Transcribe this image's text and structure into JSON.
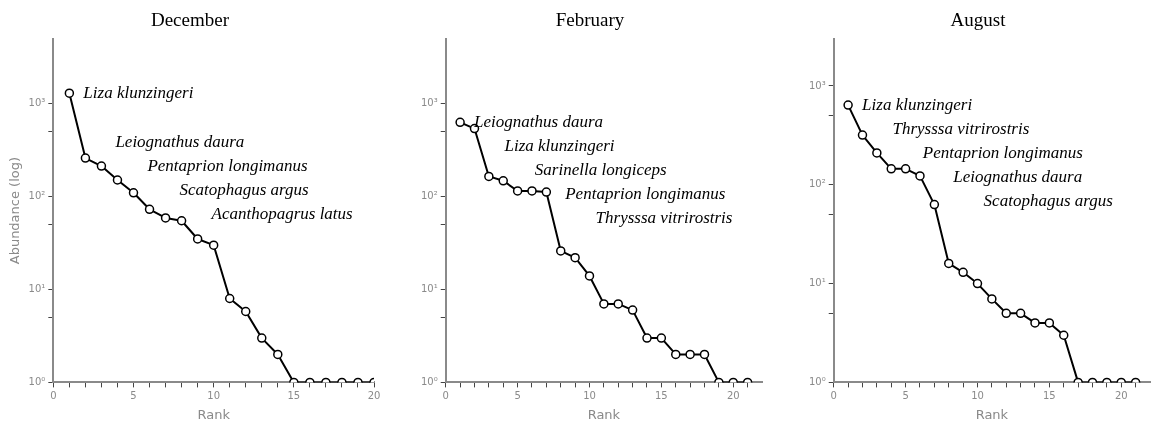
{
  "chart_data": [
    {
      "type": "line",
      "title": "December",
      "xlabel": "Rank",
      "ylabel": "Abundance (log)",
      "log": "y",
      "marker": "circle",
      "line_style": "solid",
      "x": [
        1,
        2,
        3,
        4,
        5,
        6,
        7,
        8,
        9,
        10,
        11,
        12,
        13,
        14,
        15,
        16,
        17,
        18,
        19,
        20
      ],
      "series": [
        {
          "color": "#000000",
          "values": [
            1300,
            260,
            213,
            151,
            110,
            73,
            59,
            55,
            35,
            30,
            8,
            5.8,
            3,
            2,
            1,
            1,
            1,
            1,
            1,
            1
          ]
        }
      ],
      "xlim": [
        0,
        20
      ],
      "xticks": [
        0,
        {
          "value": 1,
          "label": null
        },
        {
          "value": 2,
          "label": null
        },
        {
          "value": 3,
          "label": null
        },
        {
          "value": 4,
          "label": null
        },
        5,
        {
          "value": 6,
          "label": null
        },
        {
          "value": 7,
          "label": null
        },
        {
          "value": 8,
          "label": null
        },
        {
          "value": 9,
          "label": null
        },
        10,
        {
          "value": 11,
          "label": null
        },
        {
          "value": 12,
          "label": null
        },
        {
          "value": 13,
          "label": null
        },
        {
          "value": 14,
          "label": null
        },
        15,
        {
          "value": 16,
          "label": null
        },
        {
          "value": 17,
          "label": null
        },
        {
          "value": 18,
          "label": null
        },
        {
          "value": 19,
          "label": null
        },
        20
      ],
      "ylim": [
        1,
        5000
      ],
      "yticks": [
        {
          "value": 1,
          "label": "10⁰"
        },
        {
          "value": 5,
          "label": null
        },
        {
          "value": 10,
          "label": "10¹"
        },
        {
          "value": 50,
          "label": null
        },
        {
          "value": 100,
          "label": "10²"
        },
        {
          "value": 500,
          "label": null
        },
        {
          "value": 1000,
          "label": "10³"
        }
      ],
      "annotations": [
        "Liza klunzingeri",
        "Leiognathus daura",
        "Pentaprion longimanus",
        "Scatophagus argus",
        "Acanthopagrus latus"
      ]
    },
    {
      "type": "line",
      "title": "February",
      "xlabel": "Rank",
      "log": "y",
      "marker": "circle",
      "line_style": "solid",
      "x": [
        1,
        2,
        3,
        4,
        5,
        6,
        7,
        8,
        9,
        10,
        11,
        12,
        13,
        14,
        15,
        16,
        17,
        18,
        19,
        20,
        21
      ],
      "series": [
        {
          "color": "#000000",
          "values": [
            630,
            540,
            165,
            148,
            115,
            115,
            112,
            26,
            22,
            14,
            7,
            7,
            6,
            3,
            3,
            2,
            2,
            2,
            1,
            1,
            1
          ]
        }
      ],
      "xlim": [
        0,
        22
      ],
      "xticks": [
        0,
        {
          "value": 1,
          "label": null
        },
        {
          "value": 2,
          "label": null
        },
        {
          "value": 3,
          "label": null
        },
        {
          "value": 4,
          "label": null
        },
        5,
        {
          "value": 6,
          "label": null
        },
        {
          "value": 7,
          "label": null
        },
        {
          "value": 8,
          "label": null
        },
        {
          "value": 9,
          "label": null
        },
        10,
        {
          "value": 11,
          "label": null
        },
        {
          "value": 12,
          "label": null
        },
        {
          "value": 13,
          "label": null
        },
        {
          "value": 14,
          "label": null
        },
        15,
        {
          "value": 16,
          "label": null
        },
        {
          "value": 17,
          "label": null
        },
        {
          "value": 18,
          "label": null
        },
        {
          "value": 19,
          "label": null
        },
        20,
        {
          "value": 21,
          "label": null
        }
      ],
      "ylim": [
        1,
        5000
      ],
      "yticks": [
        {
          "value": 1,
          "label": "10⁰"
        },
        {
          "value": 5,
          "label": null
        },
        {
          "value": 10,
          "label": "10¹"
        },
        {
          "value": 50,
          "label": null
        },
        {
          "value": 100,
          "label": "10²"
        },
        {
          "value": 500,
          "label": null
        },
        {
          "value": 1000,
          "label": "10³"
        }
      ],
      "annotations": [
        "Leiognathus daura",
        "Liza klunzingeri",
        "Sarinella longiceps",
        "Pentaprion longimanus",
        "Thrysssa vitrirostris"
      ]
    },
    {
      "type": "line",
      "title": "August",
      "xlabel": "Rank",
      "log": "y",
      "marker": "circle",
      "line_style": "solid",
      "x": [
        1,
        2,
        3,
        4,
        5,
        6,
        7,
        8,
        9,
        10,
        11,
        12,
        13,
        14,
        15,
        16,
        17,
        18,
        19,
        20,
        21
      ],
      "series": [
        {
          "color": "#000000",
          "values": [
            640,
            318,
            210,
            145,
            145,
            123,
            63,
            16,
            13,
            10,
            7,
            5,
            5,
            4,
            4,
            3,
            1,
            1,
            1,
            1,
            1
          ]
        }
      ],
      "xlim": [
        0,
        22
      ],
      "xticks": [
        0,
        {
          "value": 1,
          "label": null
        },
        {
          "value": 2,
          "label": null
        },
        {
          "value": 3,
          "label": null
        },
        {
          "value": 4,
          "label": null
        },
        5,
        {
          "value": 6,
          "label": null
        },
        {
          "value": 7,
          "label": null
        },
        {
          "value": 8,
          "label": null
        },
        {
          "value": 9,
          "label": null
        },
        10,
        {
          "value": 11,
          "label": null
        },
        {
          "value": 12,
          "label": null
        },
        {
          "value": 13,
          "label": null
        },
        {
          "value": 14,
          "label": null
        },
        15,
        {
          "value": 16,
          "label": null
        },
        {
          "value": 17,
          "label": null
        },
        {
          "value": 18,
          "label": null
        },
        {
          "value": 19,
          "label": null
        },
        20,
        {
          "value": 21,
          "label": null
        }
      ],
      "ylim": [
        1,
        3000
      ],
      "yticks": [
        {
          "value": 1,
          "label": "10⁰"
        },
        {
          "value": 5,
          "label": null
        },
        {
          "value": 10,
          "label": "10¹"
        },
        {
          "value": 50,
          "label": null
        },
        {
          "value": 100,
          "label": "10²"
        },
        {
          "value": 500,
          "label": null
        },
        {
          "value": 1000,
          "label": "10³"
        }
      ],
      "annotations": [
        "Liza klunzingeri",
        "Thrysssa vitrirostris",
        "Pentaprion longimanus",
        "Leiognathus daura",
        "Scatophagus argus"
      ]
    }
  ]
}
